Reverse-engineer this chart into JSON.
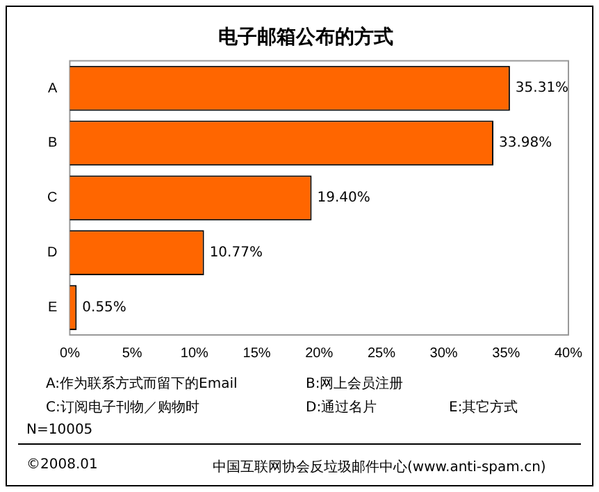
{
  "chart_data": {
    "type": "bar",
    "orientation": "horizontal",
    "title": "电子邮箱公布的方式",
    "categories": [
      "A",
      "B",
      "C",
      "D",
      "E"
    ],
    "values": [
      35.31,
      33.98,
      19.4,
      10.77,
      0.55
    ],
    "value_labels": [
      "35.31%",
      "33.98%",
      "19.40%",
      "10.77%",
      "0.55%"
    ],
    "color": "#ff6600",
    "xlim": [
      0,
      40
    ],
    "xticks": [
      {
        "value": 0,
        "label": "0%"
      },
      {
        "value": 5,
        "label": "5%"
      },
      {
        "value": 10,
        "label": "10%"
      },
      {
        "value": 15,
        "label": "15%"
      },
      {
        "value": 20,
        "label": "20%"
      },
      {
        "value": 25,
        "label": "25%"
      },
      {
        "value": 30,
        "label": "30%"
      },
      {
        "value": 35,
        "label": "35%"
      },
      {
        "value": 40,
        "label": "40%"
      }
    ],
    "grid": false,
    "legend": false,
    "annotations": [
      "A:作为联系方式而留下的Email",
      "B:网上会员注册",
      "C:订阅电子刊物／购物时",
      "D:通过名片",
      "E:其它方式",
      "N=10005",
      "©2008.01",
      "中国互联网协会反垃圾邮件中心(www.anti-spam.cn)"
    ]
  }
}
